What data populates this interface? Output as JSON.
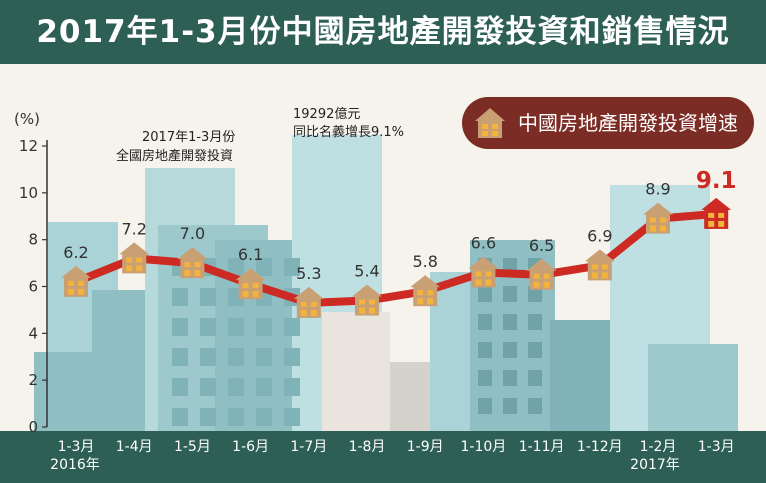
{
  "title": "2017年1-3月份中國房地產開發投資和銷售情況",
  "legend": {
    "label": "中國房地產開發投資增速",
    "icon": "house-icon"
  },
  "annotations": {
    "investment": [
      "2017年1-3月份",
      "全國房地產開發投資"
    ],
    "amount": [
      "19292億元",
      "同比名義增長9.1%"
    ]
  },
  "colors": {
    "header": "#2e5f55",
    "line": "#cc2a22",
    "legend_bg": "#7b2c24",
    "highlight": "#cc2a22",
    "house": "#c8a074"
  },
  "chart_data": {
    "type": "line",
    "title": "2017年1-3月份中國房地產開發投資和銷售情況",
    "ylabel": "(%)",
    "xlabel": "",
    "ylim": [
      0,
      12
    ],
    "yticks": [
      0,
      2,
      4,
      6,
      8,
      10,
      12
    ],
    "categories": [
      "1-3月",
      "1-4月",
      "1-5月",
      "1-6月",
      "1-7月",
      "1-8月",
      "1-9月",
      "1-10月",
      "1-11月",
      "1-12月",
      "1-2月",
      "1-3月"
    ],
    "year_labels": {
      "0": "2016年",
      "10": "2017年"
    },
    "series": [
      {
        "name": "中國房地產開發投資增速",
        "values": [
          6.2,
          7.2,
          7.0,
          6.1,
          5.3,
          5.4,
          5.8,
          6.6,
          6.5,
          6.9,
          8.9,
          9.1
        ]
      }
    ],
    "grid": false
  }
}
